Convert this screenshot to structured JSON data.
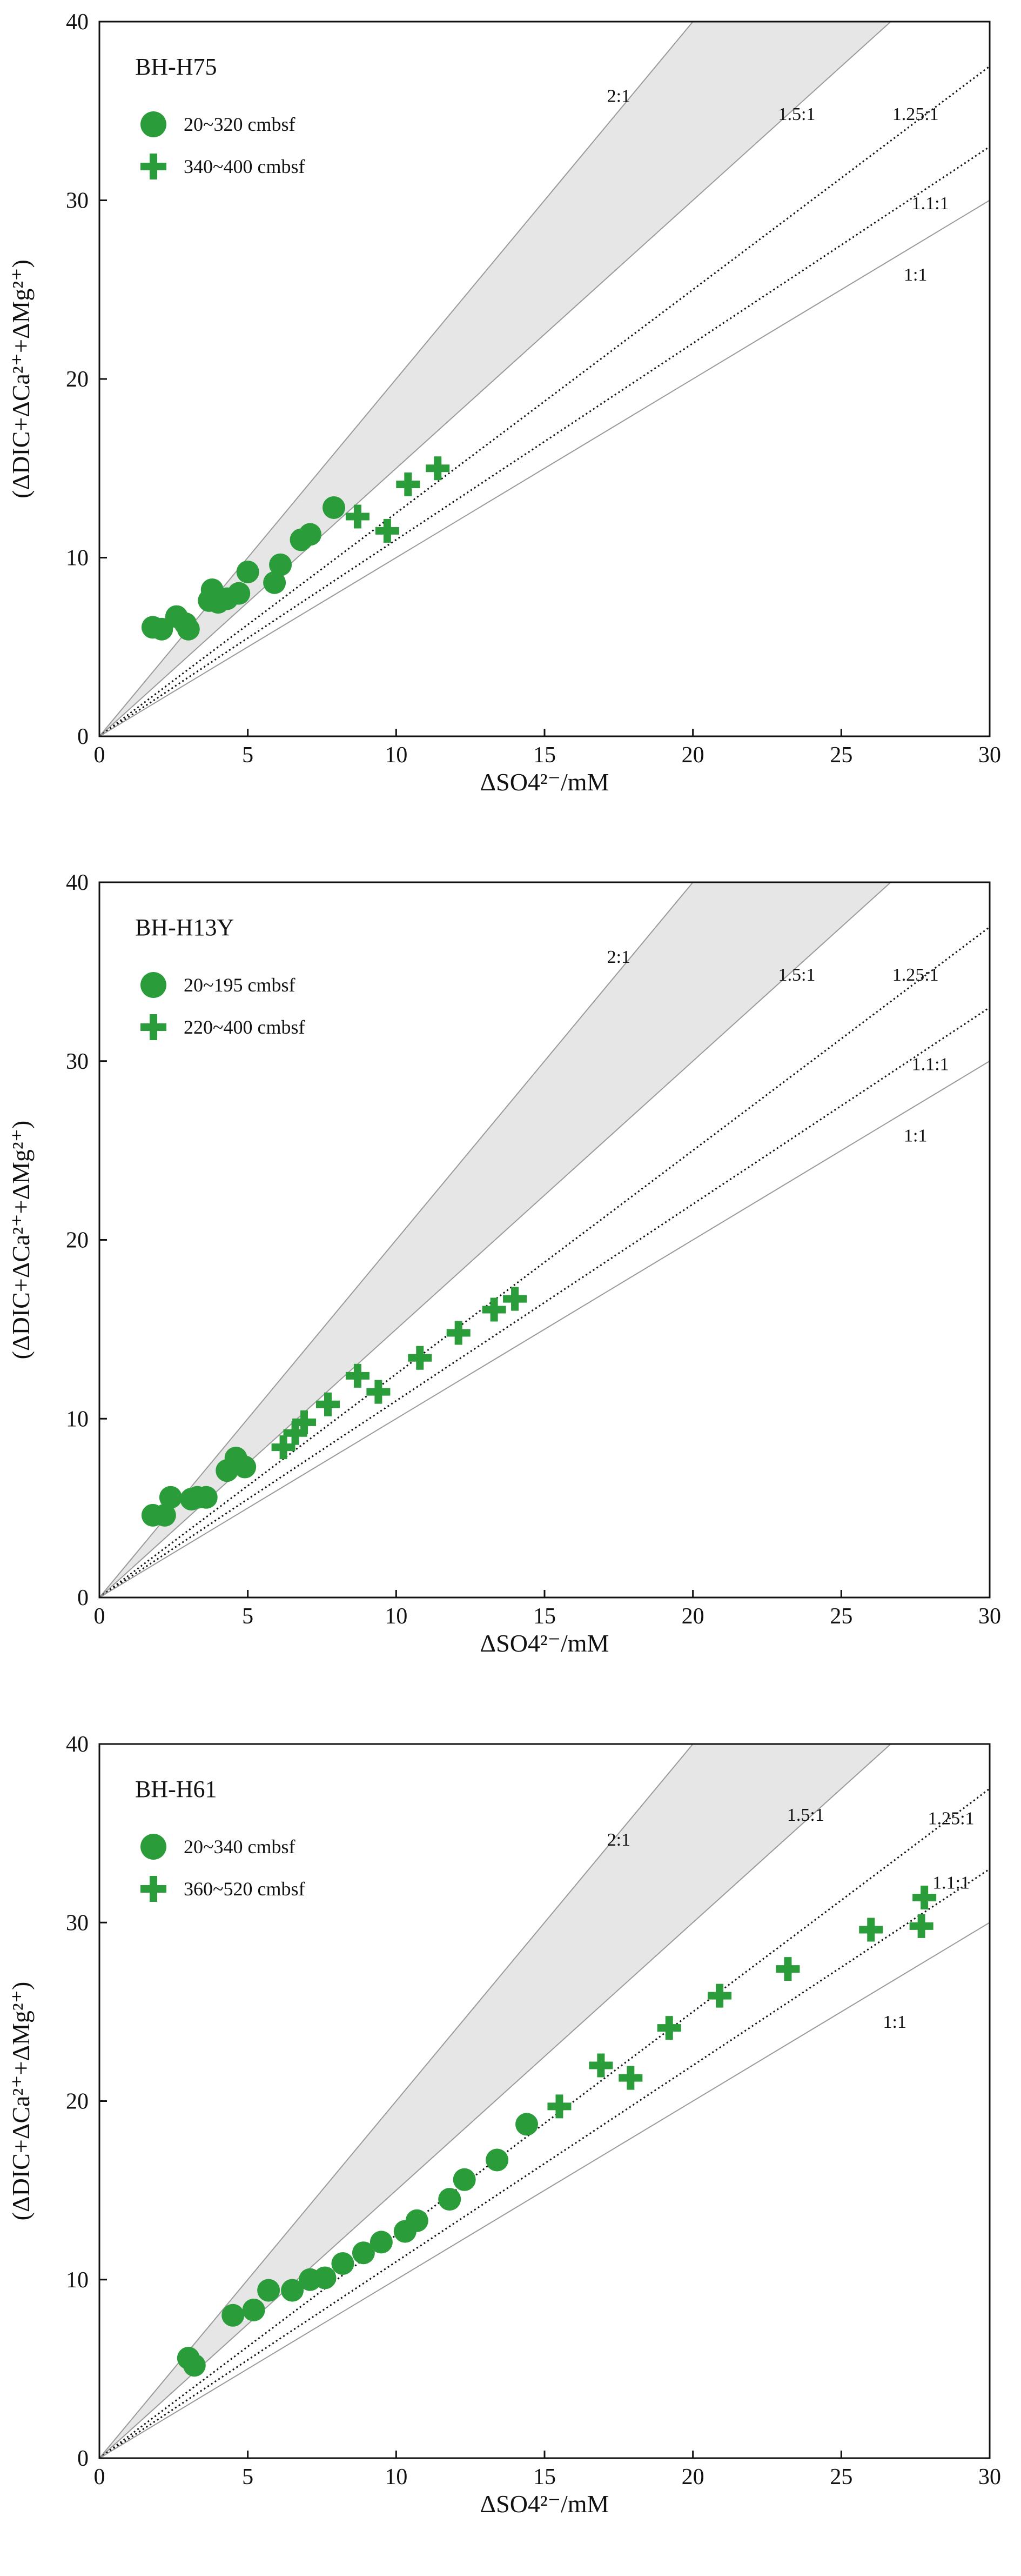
{
  "colors": {
    "marker": "#2a9d3a",
    "wedge_fill": "#e6e6e6",
    "axis": "#111111",
    "ref_line": "#9a9a9a",
    "dotted_line": "#111111"
  },
  "chart_data": [
    {
      "type": "scatter",
      "title": "BH-H75",
      "xlabel": "ΔSO4²⁻/mM",
      "ylabel": "(ΔDIC+ΔCa²⁺+ΔMg²⁺)",
      "xlim": [
        0,
        30
      ],
      "ylim": [
        0,
        40
      ],
      "xticks": [
        0,
        5,
        10,
        15,
        20,
        25,
        30
      ],
      "yticks": [
        0,
        10,
        20,
        30,
        40
      ],
      "grid": false,
      "legend": "top-left",
      "reference_lines": [
        {
          "label": "2:1",
          "slope": 2,
          "style": "solid",
          "label_at": [
            17.5,
            35.5
          ]
        },
        {
          "label": "1.5:1",
          "slope": 1.5,
          "style": "solid",
          "label_at": [
            23.5,
            34.5
          ]
        },
        {
          "label": "1.25:1",
          "slope": 1.25,
          "style": "dotted",
          "label_at": [
            27.5,
            34.5
          ]
        },
        {
          "label": "1.1:1",
          "slope": 1.1,
          "style": "dotted",
          "label_at": [
            28.0,
            29.5
          ]
        },
        {
          "label": "1:1",
          "slope": 1,
          "style": "solid",
          "label_at": [
            27.5,
            25.5
          ]
        }
      ],
      "shaded_between": [
        1.5,
        2
      ],
      "series": [
        {
          "name": "20~320 cmbsf",
          "marker": "circle",
          "points": [
            [
              1.8,
              6.1
            ],
            [
              2.1,
              6.0
            ],
            [
              2.6,
              6.7
            ],
            [
              2.9,
              6.3
            ],
            [
              3.0,
              6.0
            ],
            [
              3.7,
              7.6
            ],
            [
              3.8,
              8.2
            ],
            [
              4.0,
              7.5
            ],
            [
              4.3,
              7.7
            ],
            [
              4.7,
              8.0
            ],
            [
              5.0,
              9.2
            ],
            [
              5.9,
              8.6
            ],
            [
              6.1,
              9.6
            ],
            [
              6.8,
              11.0
            ],
            [
              7.1,
              11.3
            ],
            [
              7.9,
              12.8
            ]
          ]
        },
        {
          "name": "340~400 cmbsf",
          "marker": "plus",
          "points": [
            [
              8.7,
              12.3
            ],
            [
              9.7,
              11.5
            ],
            [
              10.4,
              14.1
            ],
            [
              11.4,
              15.0
            ]
          ]
        }
      ]
    },
    {
      "type": "scatter",
      "title": "BH-H13Y",
      "xlabel": "ΔSO4²⁻/mM",
      "ylabel": "(ΔDIC+ΔCa²⁺+ΔMg²⁺)",
      "xlim": [
        0,
        30
      ],
      "ylim": [
        0,
        40
      ],
      "xticks": [
        0,
        5,
        10,
        15,
        20,
        25,
        30
      ],
      "yticks": [
        0,
        10,
        20,
        30,
        40
      ],
      "grid": false,
      "legend": "top-left",
      "reference_lines": [
        {
          "label": "2:1",
          "slope": 2,
          "style": "solid",
          "label_at": [
            17.5,
            35.5
          ]
        },
        {
          "label": "1.5:1",
          "slope": 1.5,
          "style": "solid",
          "label_at": [
            23.5,
            34.5
          ]
        },
        {
          "label": "1.25:1",
          "slope": 1.25,
          "style": "dotted",
          "label_at": [
            27.5,
            34.5
          ]
        },
        {
          "label": "1.1:1",
          "slope": 1.1,
          "style": "dotted",
          "label_at": [
            28.0,
            29.5
          ]
        },
        {
          "label": "1:1",
          "slope": 1,
          "style": "solid",
          "label_at": [
            27.5,
            25.5
          ]
        }
      ],
      "shaded_between": [
        1.5,
        2
      ],
      "series": [
        {
          "name": "20~195 cmbsf",
          "marker": "circle",
          "points": [
            [
              1.8,
              4.6
            ],
            [
              2.2,
              4.6
            ],
            [
              2.4,
              5.6
            ],
            [
              3.1,
              5.5
            ],
            [
              3.3,
              5.6
            ],
            [
              3.6,
              5.6
            ],
            [
              4.3,
              7.1
            ],
            [
              4.6,
              7.8
            ],
            [
              4.9,
              7.3
            ]
          ]
        },
        {
          "name": "220~400 cmbsf",
          "marker": "plus",
          "points": [
            [
              6.2,
              8.4
            ],
            [
              6.6,
              9.2
            ],
            [
              6.9,
              9.8
            ],
            [
              7.7,
              10.8
            ],
            [
              8.7,
              12.4
            ],
            [
              9.4,
              11.5
            ],
            [
              10.8,
              13.4
            ],
            [
              12.1,
              14.8
            ],
            [
              13.3,
              16.1
            ],
            [
              14.0,
              16.7
            ]
          ]
        }
      ]
    },
    {
      "type": "scatter",
      "title": "BH-H61",
      "xlabel": "ΔSO4²⁻/mM",
      "ylabel": "(ΔDIC+ΔCa²⁺+ΔMg²⁺)",
      "xlim": [
        0,
        30
      ],
      "ylim": [
        0,
        40
      ],
      "xticks": [
        0,
        5,
        10,
        15,
        20,
        25,
        30
      ],
      "yticks": [
        0,
        10,
        20,
        30,
        40
      ],
      "grid": false,
      "legend": "top-left",
      "reference_lines": [
        {
          "label": "2:1",
          "slope": 2,
          "style": "solid",
          "label_at": [
            17.5,
            34.3
          ]
        },
        {
          "label": "1.5:1",
          "slope": 1.5,
          "style": "solid",
          "label_at": [
            23.8,
            35.7
          ]
        },
        {
          "label": "1.25:1",
          "slope": 1.25,
          "style": "dotted",
          "label_at": [
            28.7,
            35.5
          ]
        },
        {
          "label": "1.1:1",
          "slope": 1.1,
          "style": "dotted",
          "label_at": [
            28.7,
            31.9
          ]
        },
        {
          "label": "1:1",
          "slope": 1,
          "style": "solid",
          "label_at": [
            26.8,
            24.1
          ]
        }
      ],
      "shaded_between": [
        1.5,
        2
      ],
      "series": [
        {
          "name": "20~340 cmbsf",
          "marker": "circle",
          "points": [
            [
              3.0,
              5.6
            ],
            [
              3.2,
              5.2
            ],
            [
              4.5,
              8.0
            ],
            [
              5.2,
              8.3
            ],
            [
              5.7,
              9.4
            ],
            [
              6.5,
              9.4
            ],
            [
              7.1,
              10.0
            ],
            [
              7.6,
              10.1
            ],
            [
              8.2,
              10.9
            ],
            [
              8.9,
              11.5
            ],
            [
              9.5,
              12.1
            ],
            [
              10.3,
              12.7
            ],
            [
              10.7,
              13.3
            ],
            [
              11.8,
              14.5
            ],
            [
              12.3,
              15.6
            ],
            [
              13.4,
              16.7
            ],
            [
              14.4,
              18.7
            ]
          ]
        },
        {
          "name": "360~520 cmbsf",
          "marker": "plus",
          "points": [
            [
              15.5,
              19.7
            ],
            [
              16.9,
              22.0
            ],
            [
              17.9,
              21.3
            ],
            [
              19.2,
              24.1
            ],
            [
              20.9,
              25.9
            ],
            [
              23.2,
              27.4
            ],
            [
              26.0,
              29.6
            ],
            [
              27.7,
              29.8
            ],
            [
              27.8,
              31.4
            ]
          ]
        }
      ]
    }
  ]
}
